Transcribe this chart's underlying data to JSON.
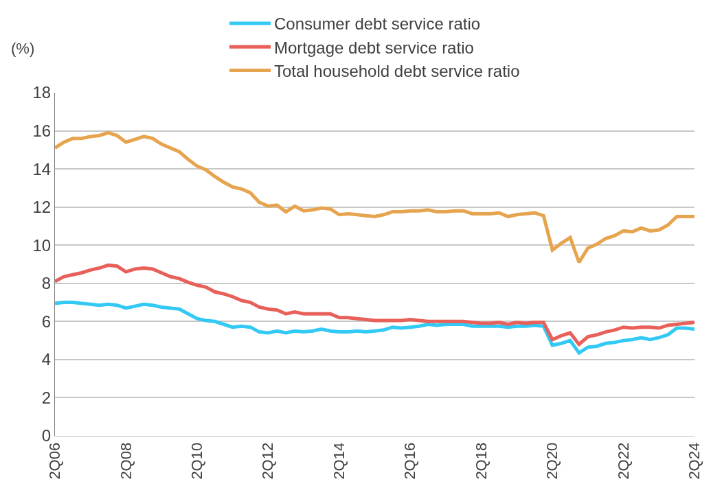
{
  "chart_data": {
    "type": "line",
    "ylabel": "(%)",
    "categories": [
      "2Q06",
      null,
      null,
      null,
      null,
      null,
      null,
      null,
      "2Q08",
      null,
      null,
      null,
      null,
      null,
      null,
      null,
      "2Q10",
      null,
      null,
      null,
      null,
      null,
      null,
      null,
      "2Q12",
      null,
      null,
      null,
      null,
      null,
      null,
      null,
      "2Q14",
      null,
      null,
      null,
      null,
      null,
      null,
      null,
      "2Q16",
      null,
      null,
      null,
      null,
      null,
      null,
      null,
      "2Q18",
      null,
      null,
      null,
      null,
      null,
      null,
      null,
      "2Q20",
      null,
      null,
      null,
      null,
      null,
      null,
      null,
      "2Q22",
      null,
      null,
      null,
      null,
      null,
      null,
      null,
      "2Q24"
    ],
    "series": [
      {
        "name": "Consumer debt service ratio",
        "color": "#33c9f5",
        "values": [
          6.95,
          7.0,
          7.0,
          6.95,
          6.9,
          6.85,
          6.9,
          6.85,
          6.7,
          6.8,
          6.9,
          6.85,
          6.75,
          6.7,
          6.65,
          6.4,
          6.15,
          6.05,
          6.0,
          5.85,
          5.7,
          5.75,
          5.7,
          5.45,
          5.4,
          5.5,
          5.4,
          5.5,
          5.45,
          5.5,
          5.6,
          5.5,
          5.45,
          5.45,
          5.5,
          5.45,
          5.5,
          5.55,
          5.7,
          5.65,
          5.7,
          5.75,
          5.85,
          5.8,
          5.85,
          5.85,
          5.85,
          5.75,
          5.75,
          5.75,
          5.75,
          5.7,
          5.75,
          5.75,
          5.8,
          5.75,
          4.75,
          4.85,
          5.0,
          4.35,
          4.65,
          4.7,
          4.85,
          4.9,
          5.0,
          5.05,
          5.15,
          5.05,
          5.15,
          5.3,
          5.65,
          5.65,
          5.6
        ]
      },
      {
        "name": "Mortgage debt service ratio",
        "color": "#e8605a",
        "values": [
          8.1,
          8.35,
          8.45,
          8.55,
          8.7,
          8.8,
          8.95,
          8.9,
          8.6,
          8.75,
          8.8,
          8.75,
          8.55,
          8.35,
          8.25,
          8.05,
          7.9,
          7.8,
          7.55,
          7.45,
          7.3,
          7.1,
          7.0,
          6.75,
          6.65,
          6.6,
          6.4,
          6.5,
          6.4,
          6.4,
          6.4,
          6.4,
          6.2,
          6.2,
          6.15,
          6.1,
          6.05,
          6.05,
          6.05,
          6.05,
          6.1,
          6.05,
          6.0,
          6.0,
          6.0,
          6.0,
          6.0,
          5.95,
          5.9,
          5.9,
          5.95,
          5.85,
          5.95,
          5.9,
          5.95,
          5.95,
          5.05,
          5.25,
          5.4,
          4.8,
          5.2,
          5.3,
          5.45,
          5.55,
          5.7,
          5.65,
          5.7,
          5.7,
          5.65,
          5.8,
          5.85,
          5.9,
          5.95
        ]
      },
      {
        "name": "Total household debt service ratio",
        "color": "#e6a44e",
        "values": [
          15.1,
          15.4,
          15.6,
          15.6,
          15.7,
          15.75,
          15.9,
          15.75,
          15.4,
          15.55,
          15.7,
          15.6,
          15.3,
          15.1,
          14.9,
          14.5,
          14.15,
          13.95,
          13.6,
          13.3,
          13.05,
          12.95,
          12.75,
          12.25,
          12.05,
          12.1,
          11.75,
          12.05,
          11.8,
          11.85,
          11.95,
          11.9,
          11.6,
          11.65,
          11.6,
          11.55,
          11.5,
          11.6,
          11.75,
          11.75,
          11.8,
          11.8,
          11.85,
          11.75,
          11.75,
          11.8,
          11.8,
          11.65,
          11.65,
          11.65,
          11.7,
          11.5,
          11.6,
          11.65,
          11.7,
          11.55,
          9.75,
          10.1,
          10.4,
          9.1,
          9.85,
          10.05,
          10.35,
          10.5,
          10.75,
          10.7,
          10.9,
          10.75,
          10.8,
          11.05,
          11.5,
          11.5,
          11.5
        ]
      }
    ],
    "ylim": [
      0,
      18
    ],
    "yticks": [
      0,
      2,
      4,
      6,
      8,
      10,
      12,
      14,
      16,
      18
    ],
    "grid": "y",
    "legend": "top",
    "marker": "none",
    "line_style": "solid"
  }
}
